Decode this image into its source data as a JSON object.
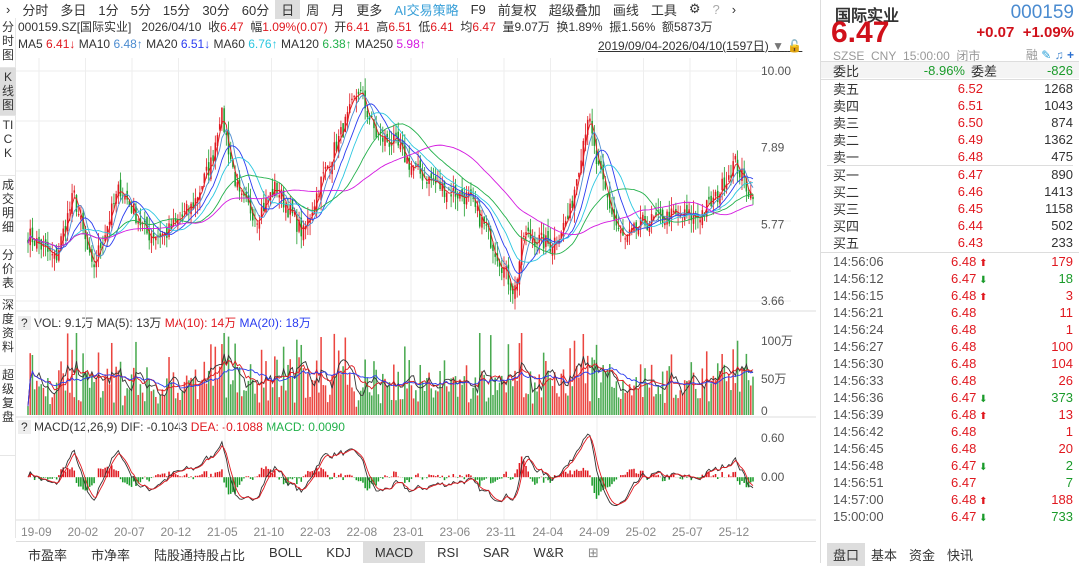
{
  "toolbar": {
    "periods": [
      "分时",
      "多日",
      "1分",
      "5分",
      "15分",
      "30分",
      "60分",
      "日",
      "周",
      "月",
      "更多"
    ],
    "selected": "日",
    "tools": [
      "AI交易策略",
      "F9",
      "前复权",
      "超级叠加",
      "画线",
      "工具"
    ]
  },
  "sidebar": [
    "分时图",
    "K线图",
    "TICK",
    "成交明细",
    "分价表",
    "深度资料",
    "超级复盘"
  ],
  "info": {
    "code": "000159.SZ[国际实业]",
    "date": "2026/04/10",
    "close_l": "收",
    "close": "6.47",
    "chg_l": "幅",
    "chg": "1.09%(0.07)",
    "open_l": "开",
    "open": "6.41",
    "high_l": "高",
    "high": "6.51",
    "low_l": "低",
    "low": "6.41",
    "avg_l": "均",
    "avg": "6.47",
    "vol_l": "量",
    "vol": "9.07万",
    "turn_l": "换",
    "turn": "1.89%",
    "amp_l": "振",
    "amp": "1.56%",
    "amt_l": "额",
    "amt": "5873万",
    "range": "2019/09/04-2026/04/10(1597日)"
  },
  "ma": [
    {
      "l": "MA5",
      "v": "6.41↓",
      "c": "#e0181f"
    },
    {
      "l": "MA10",
      "v": "6.48↑",
      "c": "#4a8bd0"
    },
    {
      "l": "MA20",
      "v": "6.51↓",
      "c": "#2a3cf0"
    },
    {
      "l": "MA60",
      "v": "6.76↑",
      "c": "#2cc7e0"
    },
    {
      "l": "MA120",
      "v": "6.38↑",
      "c": "#22b04a"
    },
    {
      "l": "MA250",
      "v": "5.98↑",
      "c": "#d419e0"
    }
  ],
  "vol_legend": {
    "vol": "VOL: 9.1万",
    "ma5": "MA(5): 13万",
    "ma10": "MA(10): 14万",
    "ma20": "MA(20): 18万"
  },
  "macd_legend": {
    "name": "MACD(12,26,9)",
    "dif": "DIF: -0.1043",
    "dea": "DEA: -0.1088",
    "macd": "MACD: 0.0090"
  },
  "chart_data": {
    "type": "candlestick",
    "price_ticks": [
      "10.00",
      "7.89",
      "5.77",
      "3.66"
    ],
    "ylim": [
      3.66,
      10.0
    ],
    "vol_ticks": [
      "100万",
      "50万",
      "0"
    ],
    "macd_ticks": [
      "0.60",
      "0.00"
    ],
    "x_ticks": [
      "19-09",
      "20-02",
      "20-07",
      "20-12",
      "21-05",
      "21-10",
      "22-03",
      "22-08",
      "23-01",
      "23-06",
      "23-11",
      "24-04",
      "24-09",
      "25-02",
      "25-07",
      "25-12"
    ],
    "close_approx": {
      "dates": [
        "2019-09",
        "2019-12",
        "2020-02",
        "2020-04",
        "2020-07",
        "2020-10",
        "2020-12",
        "2021-03",
        "2021-05",
        "2021-06",
        "2021-08",
        "2021-10",
        "2021-12",
        "2022-03",
        "2022-05",
        "2022-08",
        "2022-09",
        "2022-11",
        "2023-01",
        "2023-03",
        "2023-06",
        "2023-09",
        "2023-11",
        "2024-02",
        "2024-03",
        "2024-06",
        "2024-08",
        "2024-10",
        "2024-11",
        "2025-01",
        "2025-02",
        "2025-04",
        "2025-07",
        "2025-10",
        "2025-12",
        "2026-02",
        "2026-04"
      ],
      "values": [
        5.5,
        4.8,
        6.6,
        4.5,
        6.8,
        5.5,
        5.5,
        6.3,
        7.5,
        8.9,
        6.5,
        6.0,
        6.8,
        5.5,
        7.0,
        8.8,
        9.5,
        8.2,
        8.0,
        7.3,
        6.8,
        6.5,
        5.6,
        3.9,
        5.5,
        5.2,
        6.0,
        8.8,
        7.4,
        5.8,
        5.3,
        5.8,
        6.0,
        6.0,
        6.5,
        7.5,
        6.47
      ]
    }
  },
  "tabs": [
    "市盈率",
    "市净率",
    "陆股通持股占比",
    "BOLL",
    "KDJ",
    "MACD",
    "RSI",
    "SAR",
    "W&R"
  ],
  "tabs_selected": "MACD",
  "quote": {
    "name": "国际实业",
    "code": "000159",
    "price": "6.47",
    "chg": "+0.07",
    "pct": "+1.09%",
    "exch": "SZSE",
    "cur": "CNY",
    "time": "15:00:00",
    "status": "闭市",
    "rong": "融",
    "wb_l": "委比",
    "wb": "-8.96%",
    "wc_l": "委差",
    "wc": "-826"
  },
  "asks": [
    [
      "卖五",
      "6.52",
      "1268"
    ],
    [
      "卖四",
      "6.51",
      "1043"
    ],
    [
      "卖三",
      "6.50",
      "874"
    ],
    [
      "卖二",
      "6.49",
      "1362"
    ],
    [
      "卖一",
      "6.48",
      "475"
    ]
  ],
  "bids": [
    [
      "买一",
      "6.47",
      "890"
    ],
    [
      "买二",
      "6.46",
      "1413"
    ],
    [
      "买三",
      "6.45",
      "1158"
    ],
    [
      "买四",
      "6.44",
      "502"
    ],
    [
      "买五",
      "6.43",
      "233"
    ]
  ],
  "ticks": [
    [
      "14:56:06",
      "6.48",
      "up",
      "179"
    ],
    [
      "14:56:12",
      "6.47",
      "down",
      "18"
    ],
    [
      "14:56:15",
      "6.48",
      "up",
      "3"
    ],
    [
      "14:56:21",
      "6.48",
      "",
      "11"
    ],
    [
      "14:56:24",
      "6.48",
      "",
      "1"
    ],
    [
      "14:56:27",
      "6.48",
      "",
      "100"
    ],
    [
      "14:56:30",
      "6.48",
      "",
      "104"
    ],
    [
      "14:56:33",
      "6.48",
      "",
      "26"
    ],
    [
      "14:56:36",
      "6.47",
      "down",
      "373"
    ],
    [
      "14:56:39",
      "6.48",
      "up",
      "13"
    ],
    [
      "14:56:42",
      "6.48",
      "",
      "1"
    ],
    [
      "14:56:45",
      "6.48",
      "",
      "20"
    ],
    [
      "14:56:48",
      "6.47",
      "down",
      "2"
    ],
    [
      "14:56:51",
      "6.47",
      "",
      "7"
    ],
    [
      "14:57:00",
      "6.48",
      "up",
      "188"
    ],
    [
      "15:00:00",
      "6.47",
      "down",
      "733"
    ]
  ],
  "right_tabs": [
    "盘口",
    "基本",
    "资金",
    "快讯"
  ],
  "colors": {
    "up": "#e0181f",
    "down": "#1a9b2a",
    "accent": "#4a8bd0"
  }
}
